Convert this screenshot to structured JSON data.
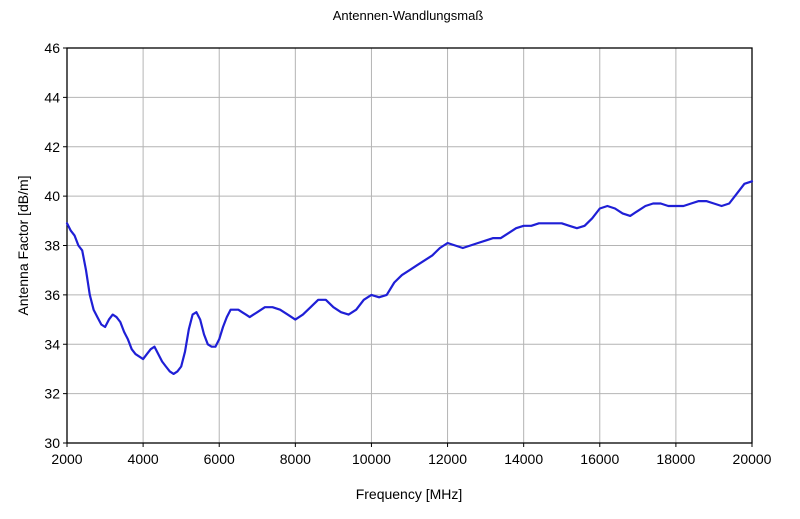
{
  "chart_data": {
    "type": "line",
    "title": "Antennen-Wandlungsmaß",
    "xlabel": "Frequency [MHz]",
    "ylabel": "Antenna Factor [dB/m]",
    "xlim": [
      2000,
      20000
    ],
    "ylim": [
      30,
      46
    ],
    "xticks": [
      2000,
      4000,
      6000,
      8000,
      10000,
      12000,
      14000,
      16000,
      18000,
      20000
    ],
    "yticks": [
      30,
      32,
      34,
      36,
      38,
      40,
      42,
      44,
      46
    ],
    "grid": true,
    "colors": {
      "series": "#1f1fd6",
      "grid": "#b4b4b4",
      "frame": "#000000"
    },
    "series": [
      {
        "x": [
          2000,
          2100,
          2200,
          2300,
          2400,
          2500,
          2600,
          2700,
          2800,
          2900,
          3000,
          3100,
          3200,
          3300,
          3400,
          3500,
          3600,
          3700,
          3800,
          3900,
          4000,
          4100,
          4200,
          4300,
          4400,
          4500,
          4600,
          4700,
          4800,
          4900,
          5000,
          5100,
          5200,
          5300,
          5400,
          5500,
          5600,
          5700,
          5800,
          5900,
          6000,
          6100,
          6200,
          6300,
          6400,
          6500,
          6600,
          6700,
          6800,
          6900,
          7000,
          7200,
          7400,
          7600,
          7800,
          8000,
          8200,
          8400,
          8600,
          8800,
          9000,
          9200,
          9400,
          9600,
          9800,
          10000,
          10200,
          10400,
          10600,
          10800,
          11000,
          11200,
          11400,
          11600,
          11800,
          12000,
          12200,
          12400,
          12600,
          12800,
          13000,
          13200,
          13400,
          13600,
          13800,
          14000,
          14200,
          14400,
          14600,
          14800,
          15000,
          15200,
          15400,
          15600,
          15800,
          16000,
          16200,
          16400,
          16600,
          16800,
          17000,
          17200,
          17400,
          17600,
          17800,
          18000,
          18200,
          18400,
          18600,
          18800,
          19000,
          19200,
          19400,
          19600,
          19800,
          20000
        ],
        "y": [
          38.9,
          38.6,
          38.4,
          38.0,
          37.8,
          37.0,
          36.0,
          35.4,
          35.1,
          34.8,
          34.7,
          35.0,
          35.2,
          35.1,
          34.9,
          34.5,
          34.2,
          33.8,
          33.6,
          33.5,
          33.4,
          33.6,
          33.8,
          33.9,
          33.6,
          33.3,
          33.1,
          32.9,
          32.8,
          32.9,
          33.1,
          33.7,
          34.6,
          35.2,
          35.3,
          35.0,
          34.4,
          34.0,
          33.9,
          33.9,
          34.2,
          34.7,
          35.1,
          35.4,
          35.4,
          35.4,
          35.3,
          35.2,
          35.1,
          35.2,
          35.3,
          35.5,
          35.5,
          35.4,
          35.2,
          35.0,
          35.2,
          35.5,
          35.8,
          35.8,
          35.5,
          35.3,
          35.2,
          35.4,
          35.8,
          36.0,
          35.9,
          36.0,
          36.5,
          36.8,
          37.0,
          37.2,
          37.4,
          37.6,
          37.9,
          38.1,
          38.0,
          37.9,
          38.0,
          38.1,
          38.2,
          38.3,
          38.3,
          38.5,
          38.7,
          38.8,
          38.8,
          38.9,
          38.9,
          38.9,
          38.9,
          38.8,
          38.7,
          38.8,
          39.1,
          39.5,
          39.6,
          39.5,
          39.3,
          39.2,
          39.4,
          39.6,
          39.7,
          39.7,
          39.6,
          39.6,
          39.6,
          39.7,
          39.8,
          39.8,
          39.7,
          39.6,
          39.7,
          40.1,
          40.5,
          40.6
        ]
      }
    ]
  }
}
